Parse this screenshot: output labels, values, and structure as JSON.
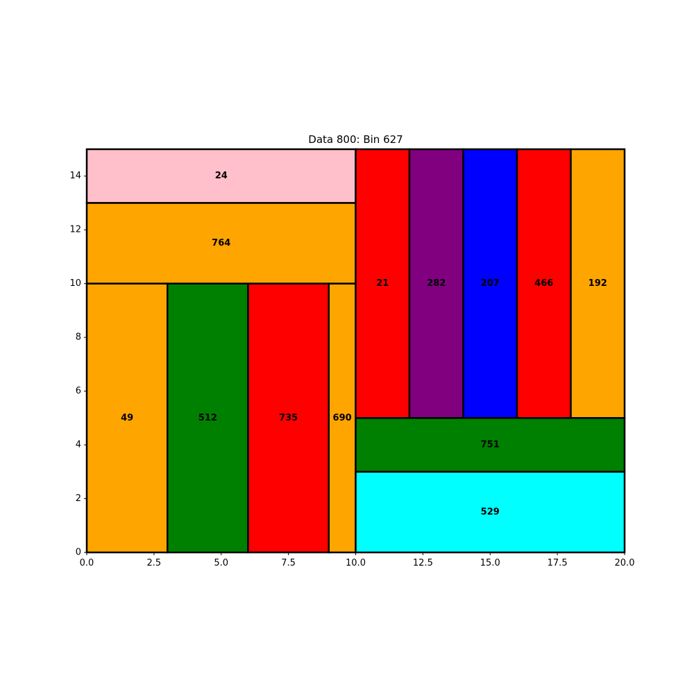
{
  "chart_data": {
    "type": "rectangle-packing",
    "title": "Data 800: Bin 627",
    "xlabel": "",
    "ylabel": "",
    "xlim": [
      0,
      20
    ],
    "ylim": [
      0,
      15
    ],
    "xticks": [
      "0.0",
      "2.5",
      "5.0",
      "7.5",
      "10.0",
      "12.5",
      "15.0",
      "17.5",
      "20.0"
    ],
    "yticks": [
      "0",
      "2",
      "4",
      "6",
      "8",
      "10",
      "12",
      "14"
    ],
    "xtick_values": [
      0,
      2.5,
      5,
      7.5,
      10,
      12.5,
      15,
      17.5,
      20
    ],
    "ytick_values": [
      0,
      2,
      4,
      6,
      8,
      10,
      12,
      14
    ],
    "grid": false,
    "rects": [
      {
        "label": "24",
        "x": 0,
        "y": 13,
        "w": 10,
        "h": 2,
        "color": "#ffc0cb"
      },
      {
        "label": "764",
        "x": 0,
        "y": 10,
        "w": 10,
        "h": 3,
        "color": "#ffa500"
      },
      {
        "label": "49",
        "x": 0,
        "y": 0,
        "w": 3,
        "h": 10,
        "color": "#ffa500"
      },
      {
        "label": "512",
        "x": 3,
        "y": 0,
        "w": 3,
        "h": 10,
        "color": "#008000"
      },
      {
        "label": "735",
        "x": 6,
        "y": 0,
        "w": 3,
        "h": 10,
        "color": "#ff0000"
      },
      {
        "label": "690",
        "x": 9,
        "y": 0,
        "w": 1,
        "h": 10,
        "color": "#ffa500"
      },
      {
        "label": "21",
        "x": 10,
        "y": 5,
        "w": 2,
        "h": 10,
        "color": "#ff0000"
      },
      {
        "label": "282",
        "x": 12,
        "y": 5,
        "w": 2,
        "h": 10,
        "color": "#800080"
      },
      {
        "label": "207",
        "x": 14,
        "y": 5,
        "w": 2,
        "h": 10,
        "color": "#0000ff"
      },
      {
        "label": "466",
        "x": 16,
        "y": 5,
        "w": 2,
        "h": 10,
        "color": "#ff0000"
      },
      {
        "label": "192",
        "x": 18,
        "y": 5,
        "w": 2,
        "h": 10,
        "color": "#ffa500"
      },
      {
        "label": "751",
        "x": 10,
        "y": 3,
        "w": 10,
        "h": 2,
        "color": "#008000"
      },
      {
        "label": "529",
        "x": 10,
        "y": 0,
        "w": 10,
        "h": 3,
        "color": "#00ffff"
      }
    ]
  }
}
